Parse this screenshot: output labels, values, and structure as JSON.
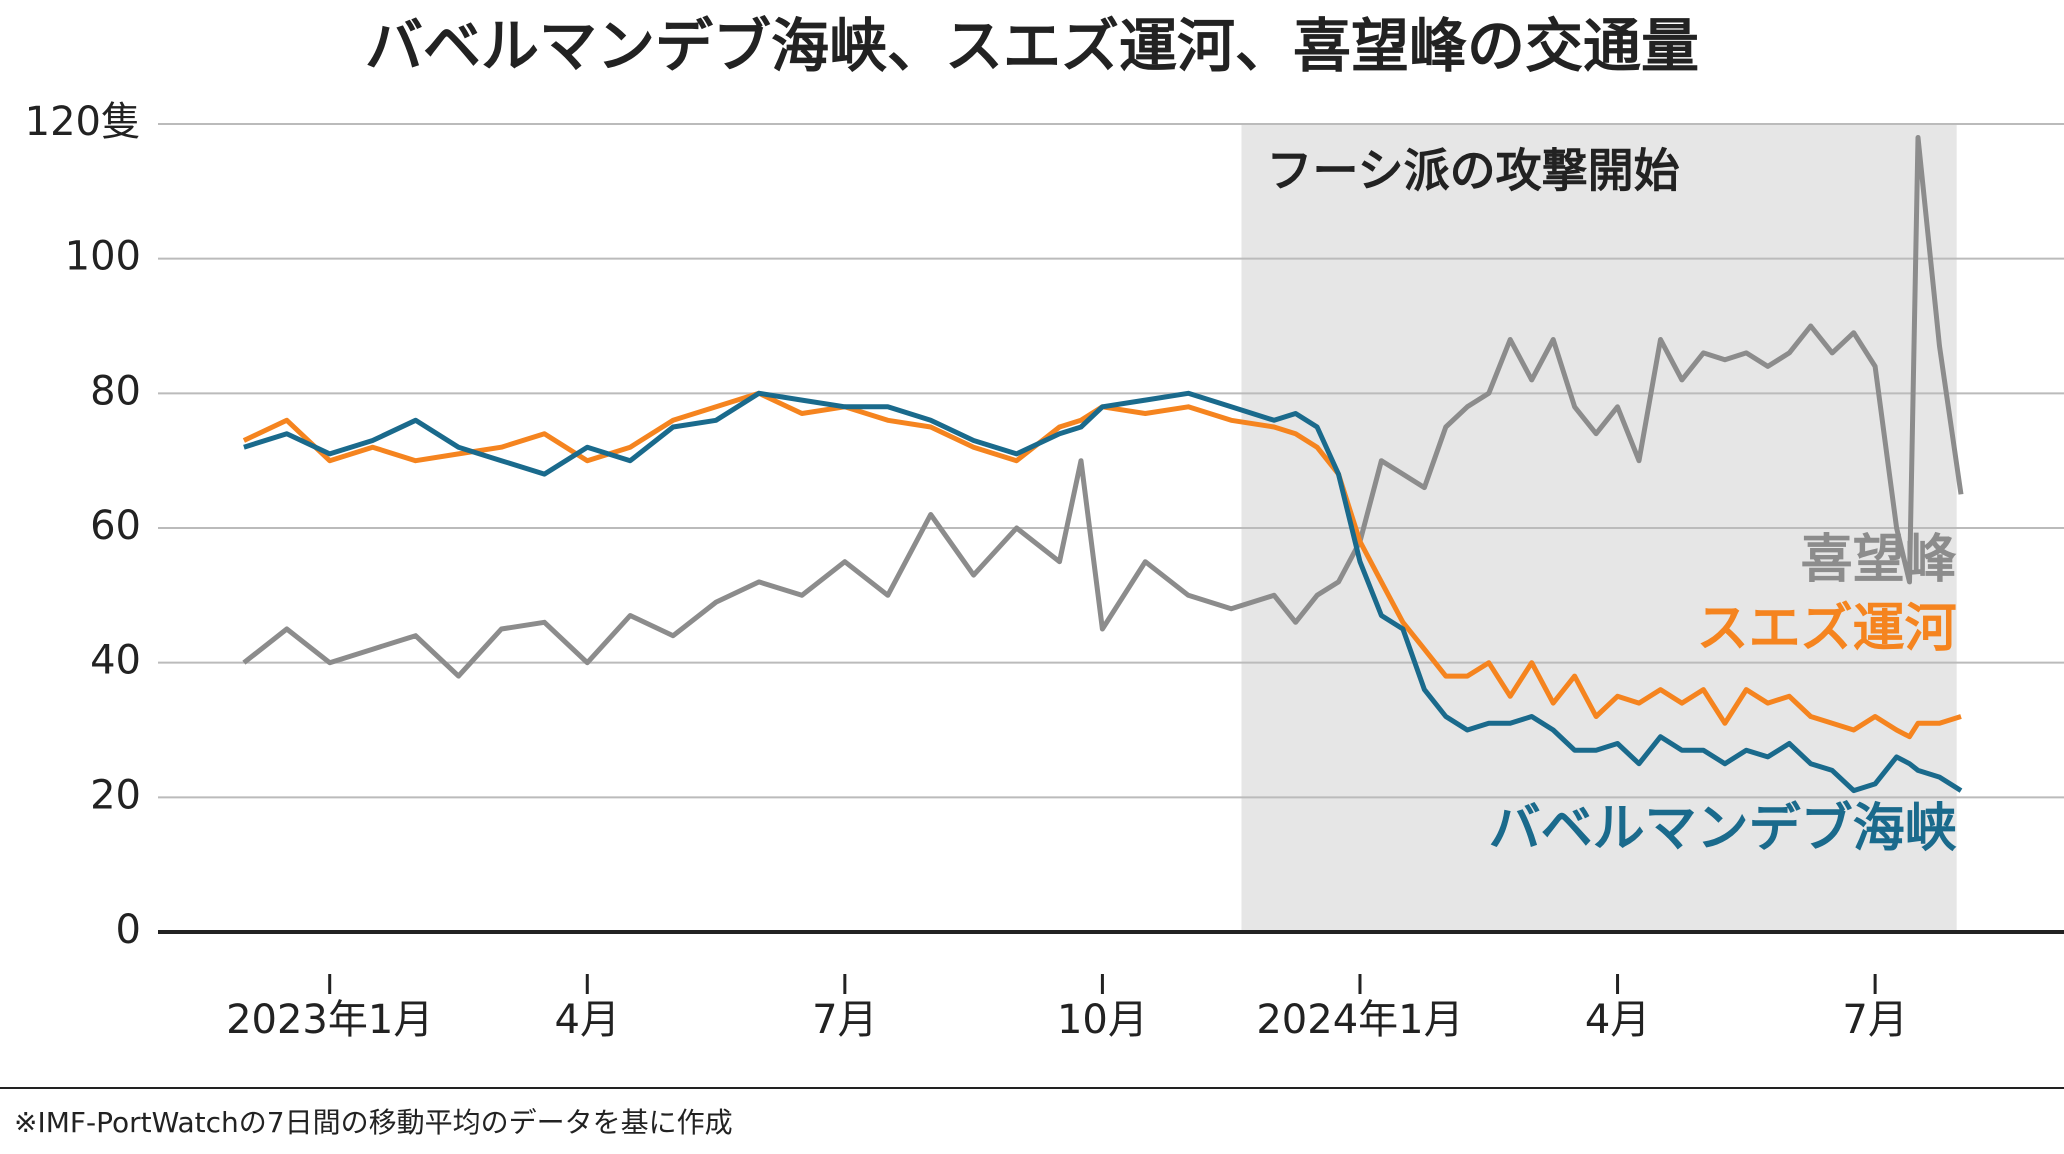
{
  "chart_data": {
    "type": "line",
    "title": "バベルマンデブ海峡、スエズ運河、喜望峰の交通量",
    "note": "※IMF-PortWatchの7日間の移動平均のデータを基に作成",
    "annotation": {
      "label": "フーシ派の攻撃開始",
      "xrange": [
        10.62,
        18.95
      ]
    },
    "x": [
      -1,
      -0.5,
      0,
      0.5,
      1,
      1.5,
      2,
      2.5,
      3,
      3.5,
      4,
      4.5,
      5,
      5.5,
      6,
      6.5,
      7,
      7.5,
      8,
      8.5,
      8.75,
      9,
      9.5,
      10,
      10.5,
      11,
      11.25,
      11.5,
      11.75,
      12,
      12.25,
      12.5,
      12.75,
      13,
      13.25,
      13.5,
      13.75,
      14,
      14.25,
      14.5,
      14.75,
      15,
      15.25,
      15.5,
      15.75,
      16,
      16.25,
      16.5,
      16.75,
      17,
      17.25,
      17.5,
      17.75,
      18,
      18.25,
      18.4,
      18.5,
      18.75,
      19
    ],
    "series": [
      {
        "name": "喜望峰",
        "color": "#8c8c8c",
        "values": [
          40,
          45,
          40,
          42,
          44,
          38,
          45,
          46,
          40,
          47,
          44,
          49,
          52,
          50,
          55,
          50,
          62,
          53,
          60,
          55,
          70,
          45,
          55,
          50,
          48,
          50,
          46,
          50,
          52,
          58,
          70,
          68,
          66,
          75,
          78,
          80,
          88,
          82,
          88,
          78,
          74,
          78,
          70,
          88,
          82,
          86,
          85,
          86,
          84,
          86,
          90,
          86,
          89,
          84,
          60,
          52,
          118,
          87,
          65
        ]
      },
      {
        "name": "スエズ運河",
        "color": "#f5841f",
        "values": [
          73,
          76,
          70,
          72,
          70,
          71,
          72,
          74,
          70,
          72,
          76,
          78,
          80,
          77,
          78,
          76,
          75,
          72,
          70,
          75,
          76,
          78,
          77,
          78,
          76,
          75,
          74,
          72,
          68,
          58,
          52,
          46,
          42,
          38,
          38,
          40,
          35,
          40,
          34,
          38,
          32,
          35,
          34,
          36,
          34,
          36,
          31,
          36,
          34,
          35,
          32,
          31,
          30,
          32,
          30,
          29,
          31,
          31,
          32
        ]
      },
      {
        "name": "バベルマンデブ海峡",
        "color": "#1a6a8c",
        "values": [
          72,
          74,
          71,
          73,
          76,
          72,
          70,
          68,
          72,
          70,
          75,
          76,
          80,
          79,
          78,
          78,
          76,
          73,
          71,
          74,
          75,
          78,
          79,
          80,
          78,
          76,
          77,
          75,
          68,
          55,
          47,
          45,
          36,
          32,
          30,
          31,
          31,
          32,
          30,
          27,
          27,
          28,
          25,
          29,
          27,
          27,
          25,
          27,
          26,
          28,
          25,
          24,
          21,
          22,
          26,
          25,
          24,
          23,
          21
        ]
      }
    ],
    "xlim": [
      -2,
      20.2
    ],
    "xticks": [
      {
        "value": 0,
        "label": "2023年1月"
      },
      {
        "value": 3,
        "label": "4月"
      },
      {
        "value": 6,
        "label": "7月"
      },
      {
        "value": 9,
        "label": "10月"
      },
      {
        "value": 12,
        "label": "2024年1月"
      },
      {
        "value": 15,
        "label": "4月"
      },
      {
        "value": 18,
        "label": "7月"
      }
    ],
    "ylim": [
      0,
      120
    ],
    "yticks": [
      0,
      20,
      40,
      60,
      80,
      100,
      {
        "value": 120,
        "label": "120隻"
      }
    ],
    "grid": true
  }
}
